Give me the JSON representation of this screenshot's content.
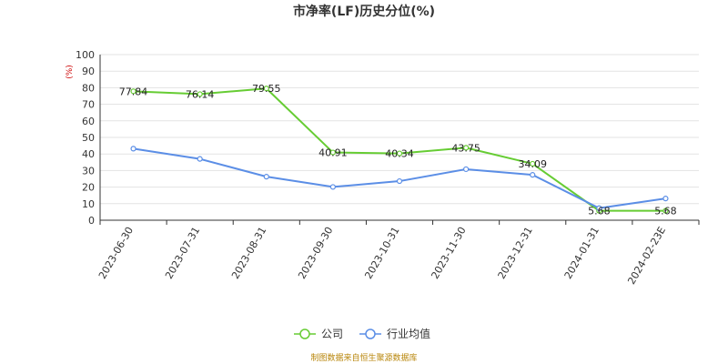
{
  "chart_data": {
    "type": "line",
    "title": "市净率(LF)历史分位(%)",
    "unit_label": "(%)",
    "xlabel": "",
    "ylabel": "",
    "ylim": [
      0,
      100
    ],
    "yticks": [
      0,
      10,
      20,
      30,
      40,
      50,
      60,
      70,
      80,
      90,
      100
    ],
    "grid": true,
    "legend_position": "bottom",
    "categories": [
      "2023-06-30",
      "2023-07-31",
      "2023-08-31",
      "2023-09-30",
      "2023-10-31",
      "2023-11-30",
      "2023-12-31",
      "2024-01-31",
      "2024-02-23E"
    ],
    "series": [
      {
        "name": "公司",
        "color": "#66cc33",
        "values": [
          77.84,
          76.14,
          79.55,
          40.91,
          40.34,
          43.75,
          34.09,
          5.68,
          5.68
        ],
        "data_labels": [
          "77.84",
          "76.14",
          "79.55",
          "40.91",
          "40.34",
          "43.75",
          "34.09",
          "5.68",
          "5.68"
        ]
      },
      {
        "name": "行业均值",
        "color": "#5b8ee6",
        "values": [
          43.2,
          37.0,
          26.3,
          20.1,
          23.6,
          30.8,
          27.4,
          7.3,
          13.1
        ]
      }
    ]
  },
  "source_note": "制图数据来自恒生聚源数据库"
}
